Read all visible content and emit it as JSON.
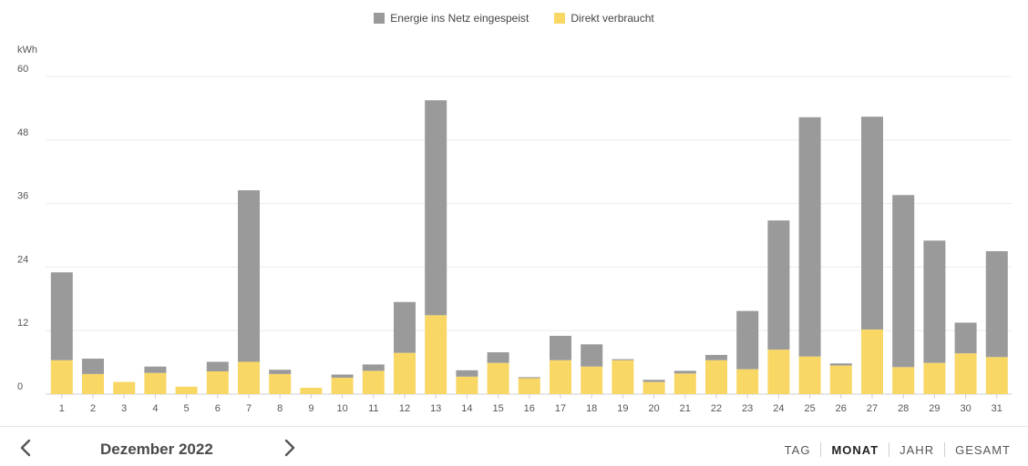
{
  "legend": {
    "exported_label": "Energie ins Netz eingespeist",
    "direct_label": "Direkt verbraucht"
  },
  "colors": {
    "exported": "#9a9a9a",
    "direct": "#f9d765",
    "grid": "#ebebeb",
    "text": "#555555"
  },
  "chart_data": {
    "type": "bar",
    "stacked": true,
    "ylabel": "kWh",
    "ylim": [
      0,
      60
    ],
    "yticks": [
      0,
      12,
      24,
      36,
      48,
      60
    ],
    "grid": true,
    "legend_position": "top-center",
    "categories": [
      "1",
      "2",
      "3",
      "4",
      "5",
      "6",
      "7",
      "8",
      "9",
      "10",
      "11",
      "12",
      "13",
      "14",
      "15",
      "16",
      "17",
      "18",
      "19",
      "20",
      "21",
      "22",
      "23",
      "24",
      "25",
      "26",
      "27",
      "28",
      "29",
      "30",
      "31"
    ],
    "series": [
      {
        "name": "Direkt verbraucht",
        "values": [
          6.4,
          3.8,
          2.3,
          4.0,
          1.4,
          4.3,
          6.1,
          3.8,
          1.2,
          3.1,
          4.4,
          7.8,
          14.9,
          3.3,
          5.9,
          3.0,
          6.4,
          5.2,
          6.4,
          2.3,
          3.9,
          6.4,
          4.7,
          8.4,
          7.1,
          5.4,
          12.2,
          5.1,
          5.9,
          7.7,
          7.0
        ]
      },
      {
        "name": "Energie ins Netz eingespeist",
        "values": [
          16.6,
          2.9,
          0.0,
          1.2,
          0.0,
          1.8,
          32.4,
          0.8,
          0.0,
          0.6,
          1.2,
          9.6,
          40.6,
          1.2,
          2.0,
          0.2,
          4.6,
          4.2,
          0.2,
          0.4,
          0.5,
          1.0,
          11.0,
          24.4,
          45.2,
          0.4,
          40.2,
          32.5,
          23.1,
          5.8,
          20.0
        ]
      }
    ]
  },
  "nav": {
    "prev_icon": "chevron-left-icon",
    "next_icon": "chevron-right-icon",
    "period_label": "Dezember 2022"
  },
  "tabs": [
    {
      "label": "TAG",
      "active": false
    },
    {
      "label": "MONAT",
      "active": true
    },
    {
      "label": "JAHR",
      "active": false
    },
    {
      "label": "GESAMT",
      "active": false
    }
  ]
}
